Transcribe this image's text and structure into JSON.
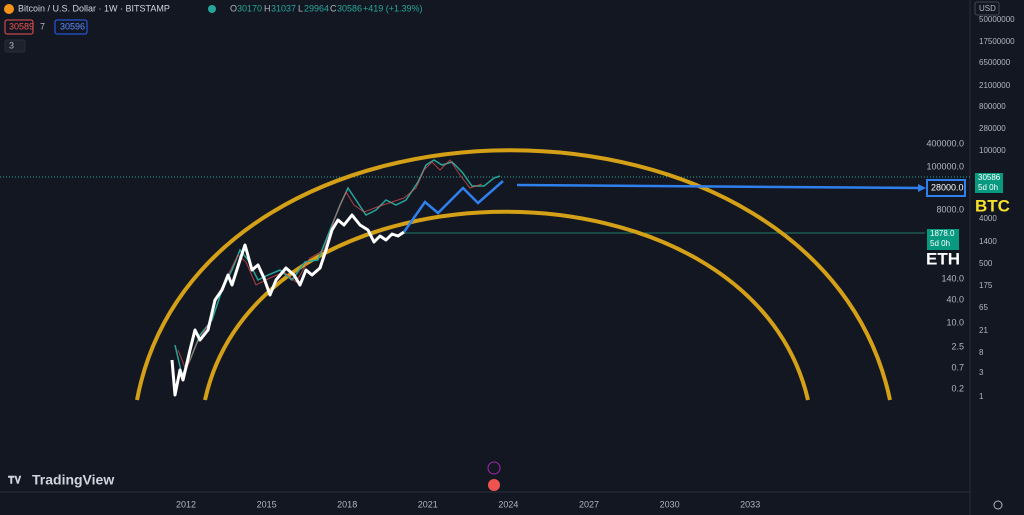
{
  "header": {
    "symbol": "Bitcoin / U.S. Dollar · 1W · BITSTAMP",
    "open_label": "O",
    "open": "30170",
    "high_label": "H",
    "high": "31037",
    "low_label": "L",
    "low": "29964",
    "close_label": "C",
    "close": "30586",
    "change": "+419 (+1.39%)",
    "sell": "30589",
    "spread": "7",
    "buy": "30596",
    "indicators": "3"
  },
  "right_axis": {
    "currency": "USD",
    "labels": [
      "50000000",
      "17500000",
      "6500000",
      "2100000",
      "800000",
      "280000",
      "100000",
      "4000",
      "1400",
      "500",
      "175",
      "65",
      "21",
      "8",
      "3",
      "1"
    ],
    "price_tag": "30586",
    "price_countdown": "5d 0h"
  },
  "inner_axis": {
    "labels": [
      "400000.0",
      "100000.0",
      "8000.0",
      "140.0",
      "40.0",
      "10.0",
      "2.5",
      "0.7",
      "0.2"
    ],
    "target_tag": "28000.0",
    "eth_tag": "1878.0",
    "eth_countdown": "5d 0h"
  },
  "annotations": {
    "btc": "BTC",
    "eth": "ETH"
  },
  "time_axis": [
    "2012",
    "2015",
    "2018",
    "2021",
    "2024",
    "2027",
    "2030",
    "2033"
  ],
  "logo": "TradingView"
}
